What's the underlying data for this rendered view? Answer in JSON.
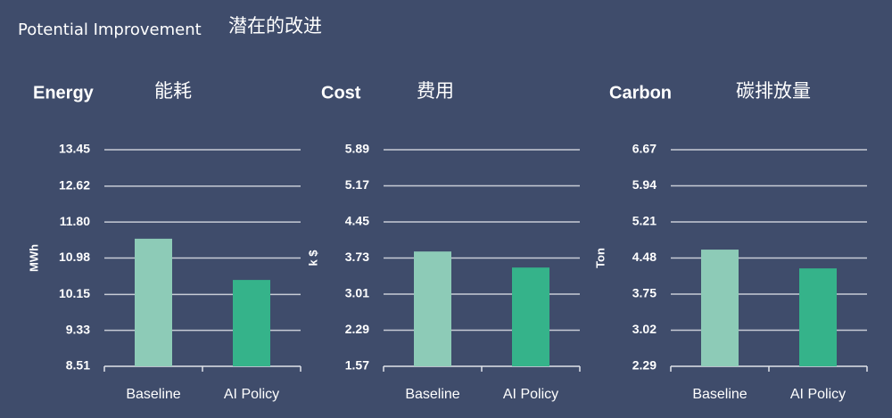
{
  "header": {
    "title": "Potential Improvement",
    "subtitle": "潜在的改进"
  },
  "chart_data": [
    {
      "type": "bar",
      "title": "Energy",
      "subtitle": "能耗",
      "y_label": "MWh",
      "categories": [
        "Baseline",
        "AI Policy"
      ],
      "values": [
        11.42,
        10.48
      ],
      "colors": [
        "#8dcbb7",
        "#35b38a"
      ],
      "ylim": [
        8.51,
        13.45
      ],
      "yticks": [
        8.51,
        9.33,
        10.15,
        10.98,
        {
          "value": 11.8,
          "label": "11.80"
        },
        12.62,
        13.45
      ],
      "grid": true
    },
    {
      "type": "bar",
      "title": "Cost",
      "subtitle": "费用",
      "y_label": "k $",
      "categories": [
        "Baseline",
        "AI Policy"
      ],
      "values": [
        3.86,
        3.54
      ],
      "colors": [
        "#8dcbb7",
        "#35b38a"
      ],
      "ylim": [
        1.57,
        5.89
      ],
      "yticks": [
        1.57,
        2.29,
        3.01,
        3.73,
        4.45,
        5.17,
        5.89
      ],
      "grid": true
    },
    {
      "type": "bar",
      "title": "Carbon",
      "subtitle": "碳排放量",
      "y_label": "Ton",
      "categories": [
        "Baseline",
        "AI Policy"
      ],
      "values": [
        4.65,
        4.27
      ],
      "colors": [
        "#8dcbb7",
        "#35b38a"
      ],
      "ylim": [
        2.29,
        6.67
      ],
      "yticks": [
        2.29,
        3.02,
        3.75,
        4.48,
        5.21,
        5.94,
        6.67
      ],
      "grid": true
    }
  ]
}
